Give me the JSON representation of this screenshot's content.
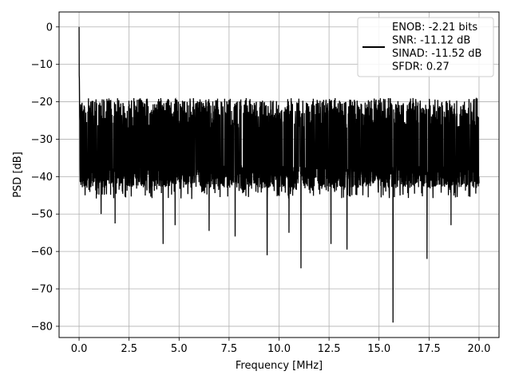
{
  "chart_data": {
    "type": "line",
    "title": "",
    "xlabel": "Frequency [MHz]",
    "ylabel": "PSD [dB]",
    "xlim": [
      -1,
      21
    ],
    "ylim": [
      -83,
      4
    ],
    "xticks": [
      0.0,
      2.5,
      5.0,
      7.5,
      10.0,
      12.5,
      15.0,
      17.5,
      20.0
    ],
    "xtick_labels": [
      "0.0",
      "2.5",
      "5.0",
      "7.5",
      "10.0",
      "12.5",
      "15.0",
      "17.5",
      "20.0"
    ],
    "yticks": [
      0,
      -10,
      -20,
      -30,
      -40,
      -50,
      -60,
      -70,
      -80
    ],
    "ytick_labels": [
      "0",
      "−10",
      "−20",
      "−30",
      "−40",
      "−50",
      "−60",
      "−70",
      "−80"
    ],
    "grid": true,
    "legend_position": "top-right",
    "legend_entries": [
      "ENOB: -2.21 bits",
      "SNR: -11.12 dB",
      "SINAD: -11.52 dB",
      "SFDR: 0.27"
    ],
    "series_color": "#000000",
    "x_range": [
      0,
      20
    ],
    "noise_floor_band": [
      -40,
      -20
    ],
    "dc_peak": {
      "x": 0.0,
      "y": 0
    },
    "notable_dips": [
      {
        "x": 0.3,
        "y": -45
      },
      {
        "x": 1.1,
        "y": -50
      },
      {
        "x": 1.8,
        "y": -52.5
      },
      {
        "x": 4.2,
        "y": -58
      },
      {
        "x": 4.8,
        "y": -53
      },
      {
        "x": 6.5,
        "y": -54.5
      },
      {
        "x": 7.8,
        "y": -56
      },
      {
        "x": 9.4,
        "y": -61
      },
      {
        "x": 10.5,
        "y": -55
      },
      {
        "x": 11.1,
        "y": -64.5
      },
      {
        "x": 12.6,
        "y": -58
      },
      {
        "x": 13.4,
        "y": -59.5
      },
      {
        "x": 15.7,
        "y": -79
      },
      {
        "x": 17.4,
        "y": -62
      },
      {
        "x": 18.6,
        "y": -53
      }
    ]
  }
}
